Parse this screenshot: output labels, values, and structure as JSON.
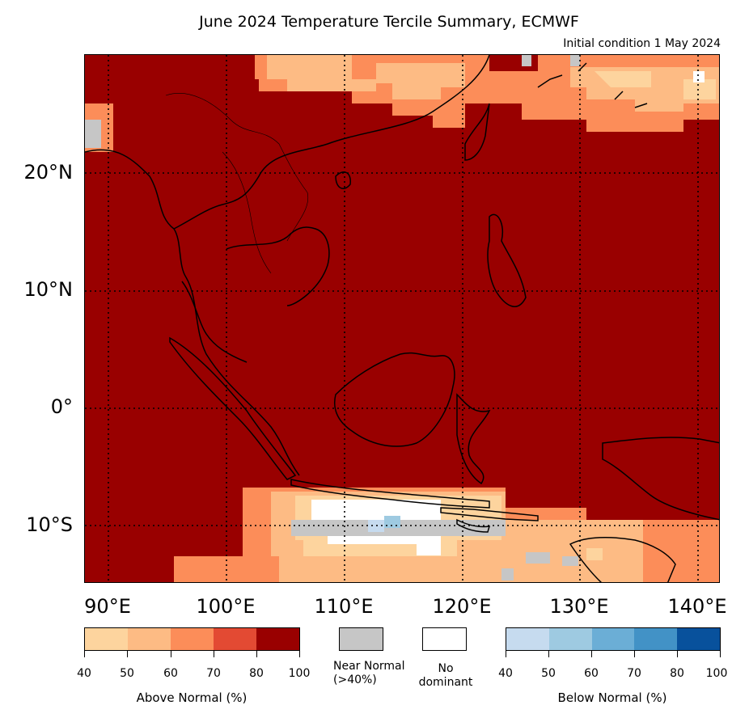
{
  "title": "June 2024 Temperature Tercile Summary, ECMWF",
  "subtitle": "Initial condition 1 May 2024",
  "map": {
    "background_color": "#990000",
    "lat_labels": [
      "20°N",
      "10°N",
      "0°",
      "10°S"
    ],
    "lon_labels": [
      "90°E",
      "100°E",
      "110°E",
      "120°E",
      "130°E",
      "140°E"
    ],
    "lon_min": 88,
    "lon_max": 142,
    "lat_min": -15,
    "lat_max": 30,
    "gridlines": "dotted"
  },
  "legend": {
    "above": {
      "label": "Above Normal (%)",
      "ticks": [
        "40",
        "50",
        "60",
        "70",
        "80",
        "100"
      ],
      "colors": [
        "#fdd49e",
        "#fdbb84",
        "#fc8d59",
        "#e34a33",
        "#990000"
      ]
    },
    "near": {
      "label_line1": "Near Normal",
      "label_line2": "(>40%)",
      "color": "#c6c6c6"
    },
    "none": {
      "label_line1": "No",
      "label_line2": "dominant",
      "color": "#ffffff"
    },
    "below": {
      "label": "Below Normal (%)",
      "ticks": [
        "40",
        "50",
        "60",
        "70",
        "80",
        "100"
      ],
      "colors": [
        "#c6dbef",
        "#9ecae1",
        "#6baed6",
        "#4292c6",
        "#08519c"
      ]
    }
  }
}
